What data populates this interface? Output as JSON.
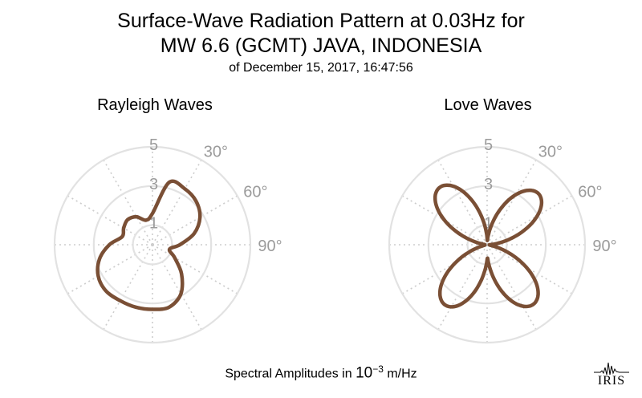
{
  "title_line1": "Surface-Wave Radiation Pattern at 0.03Hz for",
  "title_line2": "MW 6.6 (GCMT) JAVA, INDONESIA",
  "title_line3": "of December 15, 2017, 16:47:56",
  "footer": {
    "prefix": "Spectral Amplitudes in ",
    "base": "10",
    "exponent": "−3",
    "unit": " m/Hz"
  },
  "logo_text": "IRIS",
  "colors": {
    "pattern": "#7a4f35",
    "grid_circle": "#e2e2e2",
    "grid_dotted": "#cdcdcd",
    "tick": "#9b9b9b"
  },
  "chart_data": [
    {
      "type": "polar-line",
      "title": "Rayleigh Waves",
      "radial_ticks": [
        "1",
        "3",
        "5"
      ],
      "angular_ticks": [
        "30°",
        "60°",
        "90°"
      ],
      "rlim": [
        0,
        5
      ],
      "angle_unit": "degrees clockwise from north",
      "series": [
        {
          "azimuth": [
            0,
            15,
            30,
            45,
            60,
            75,
            90,
            105,
            120,
            135,
            150,
            165,
            180,
            195,
            210,
            225,
            240,
            255,
            270,
            285,
            300,
            315,
            330,
            345
          ],
          "amplitude": [
            1.6,
            3.3,
            3.3,
            3.15,
            2.8,
            2.2,
            1.4,
            0.9,
            1.3,
            2.1,
            2.9,
            3.3,
            3.3,
            3.3,
            3.3,
            3.35,
            3.2,
            2.8,
            2.2,
            1.6,
            1.7,
            1.8,
            1.65,
            1.3
          ]
        }
      ]
    },
    {
      "type": "polar-line",
      "title": "Love Waves",
      "radial_ticks": [
        "1",
        "3",
        "5"
      ],
      "angular_ticks": [
        "30°",
        "60°",
        "90°"
      ],
      "rlim": [
        0,
        5
      ],
      "angle_unit": "degrees clockwise from north",
      "series": [
        {
          "lobe_azimuths": [
            45,
            142,
            215,
            320
          ],
          "lobe_amplitudes": [
            3.7,
            3.85,
            3.75,
            3.8
          ]
        }
      ]
    }
  ]
}
